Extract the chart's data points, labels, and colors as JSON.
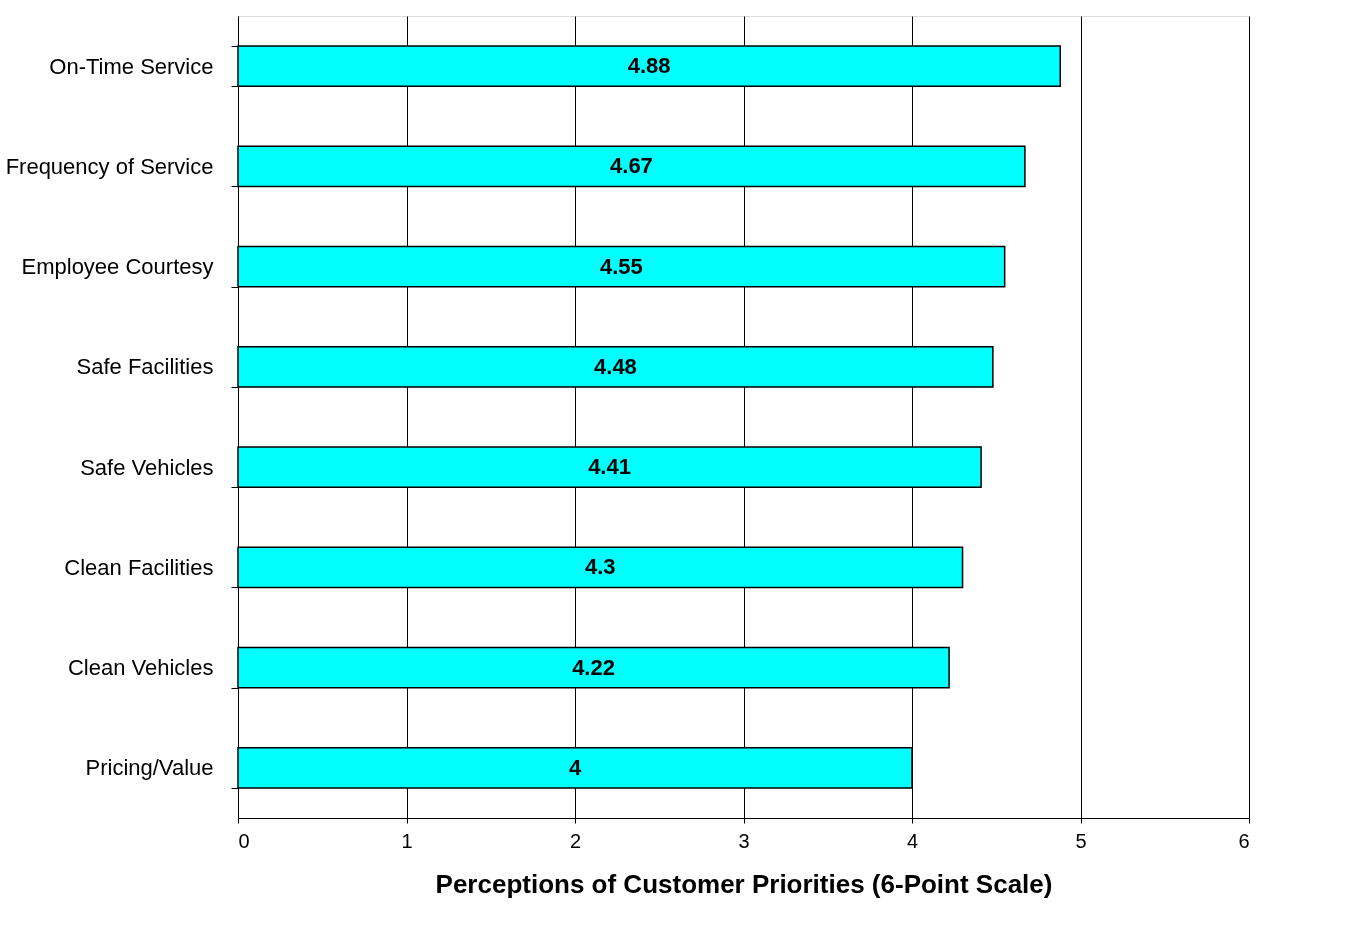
{
  "chart_data": {
    "type": "bar",
    "orientation": "horizontal",
    "xlabel": "Perceptions of Customer Priorities (6-Point Scale)",
    "categories": [
      "On-Time Service",
      "Frequency of Service",
      "Employee Courtesy",
      "Safe Facilities",
      "Safe Vehicles",
      "Clean Facilities",
      "Clean Vehicles",
      "Pricing/Value"
    ],
    "values": [
      4.88,
      4.67,
      4.55,
      4.48,
      4.41,
      4.3,
      4.22,
      4
    ],
    "color": "#00ffff",
    "xlim": [
      0,
      6
    ],
    "xticks": [
      0,
      1,
      2,
      3,
      4,
      5,
      6
    ],
    "grid": "x",
    "data_labels": true
  }
}
